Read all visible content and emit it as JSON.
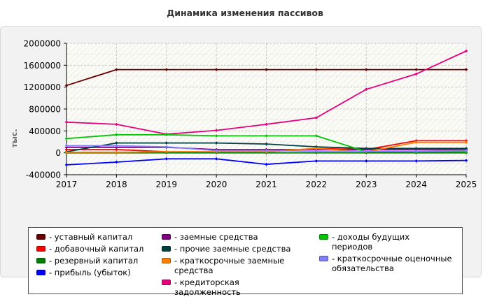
{
  "chart_data": {
    "type": "line",
    "title": "Динамика изменения пассивов",
    "ylabel": "тыс.",
    "xlabel": "",
    "x": [
      "2017",
      "2018",
      "2019",
      "2020",
      "2021",
      "2022",
      "2023",
      "2024",
      "2025"
    ],
    "ylim": [
      -400000,
      2000000
    ],
    "yticks": [
      -400000,
      0,
      400000,
      800000,
      1200000,
      1600000,
      2000000
    ],
    "ytick_labels": [
      "-400000",
      "0",
      "400000",
      "800000",
      "1200000",
      "1600000",
      "2000000"
    ],
    "grid": true,
    "legend_position": "bottom",
    "series": [
      {
        "name": "- уставный капитал",
        "color": "#6b0000",
        "values": [
          1230000,
          1520000,
          1520000,
          1520000,
          1520000,
          1520000,
          1520000,
          1520000,
          1520000
        ]
      },
      {
        "name": "- добавочный капитал",
        "color": "#ff0000",
        "values": [
          60000,
          60000,
          20000,
          20000,
          20000,
          80000,
          60000,
          220000,
          220000
        ]
      },
      {
        "name": "- резервный капитал",
        "color": "#008000",
        "values": [
          0,
          0,
          0,
          0,
          0,
          0,
          0,
          0,
          0
        ]
      },
      {
        "name": "- прибыль (убыток)",
        "color": "#0000ff",
        "values": [
          -220000,
          -170000,
          -110000,
          -110000,
          -210000,
          -150000,
          -150000,
          -150000,
          -140000
        ]
      },
      {
        "name": "- заемные средства",
        "color": "#800080",
        "values": [
          100000,
          100000,
          100000,
          60000,
          60000,
          60000,
          60000,
          60000,
          60000
        ]
      },
      {
        "name": "- прочие заемные средства",
        "color": "#004040",
        "values": [
          20000,
          180000,
          180000,
          180000,
          160000,
          110000,
          80000,
          80000,
          80000
        ]
      },
      {
        "name": "- краткосрочные заемные средства",
        "color": "#ff8000",
        "values": [
          10000,
          10000,
          20000,
          20000,
          20000,
          80000,
          20000,
          190000,
          190000
        ]
      },
      {
        "name": "- кредиторская задолженность",
        "color": "#e6007e",
        "values": [
          560000,
          520000,
          340000,
          410000,
          520000,
          640000,
          1160000,
          1440000,
          1860000
        ]
      },
      {
        "name": "- доходы будущих периодов",
        "color": "#00c800",
        "values": [
          260000,
          330000,
          330000,
          310000,
          310000,
          310000,
          20000,
          20000,
          20000
        ]
      },
      {
        "name": "- краткосрочные оценочные обязательства",
        "color": "#8080ff",
        "values": [
          130000,
          130000,
          110000,
          40000,
          40000,
          30000,
          30000,
          30000,
          40000
        ]
      }
    ]
  }
}
